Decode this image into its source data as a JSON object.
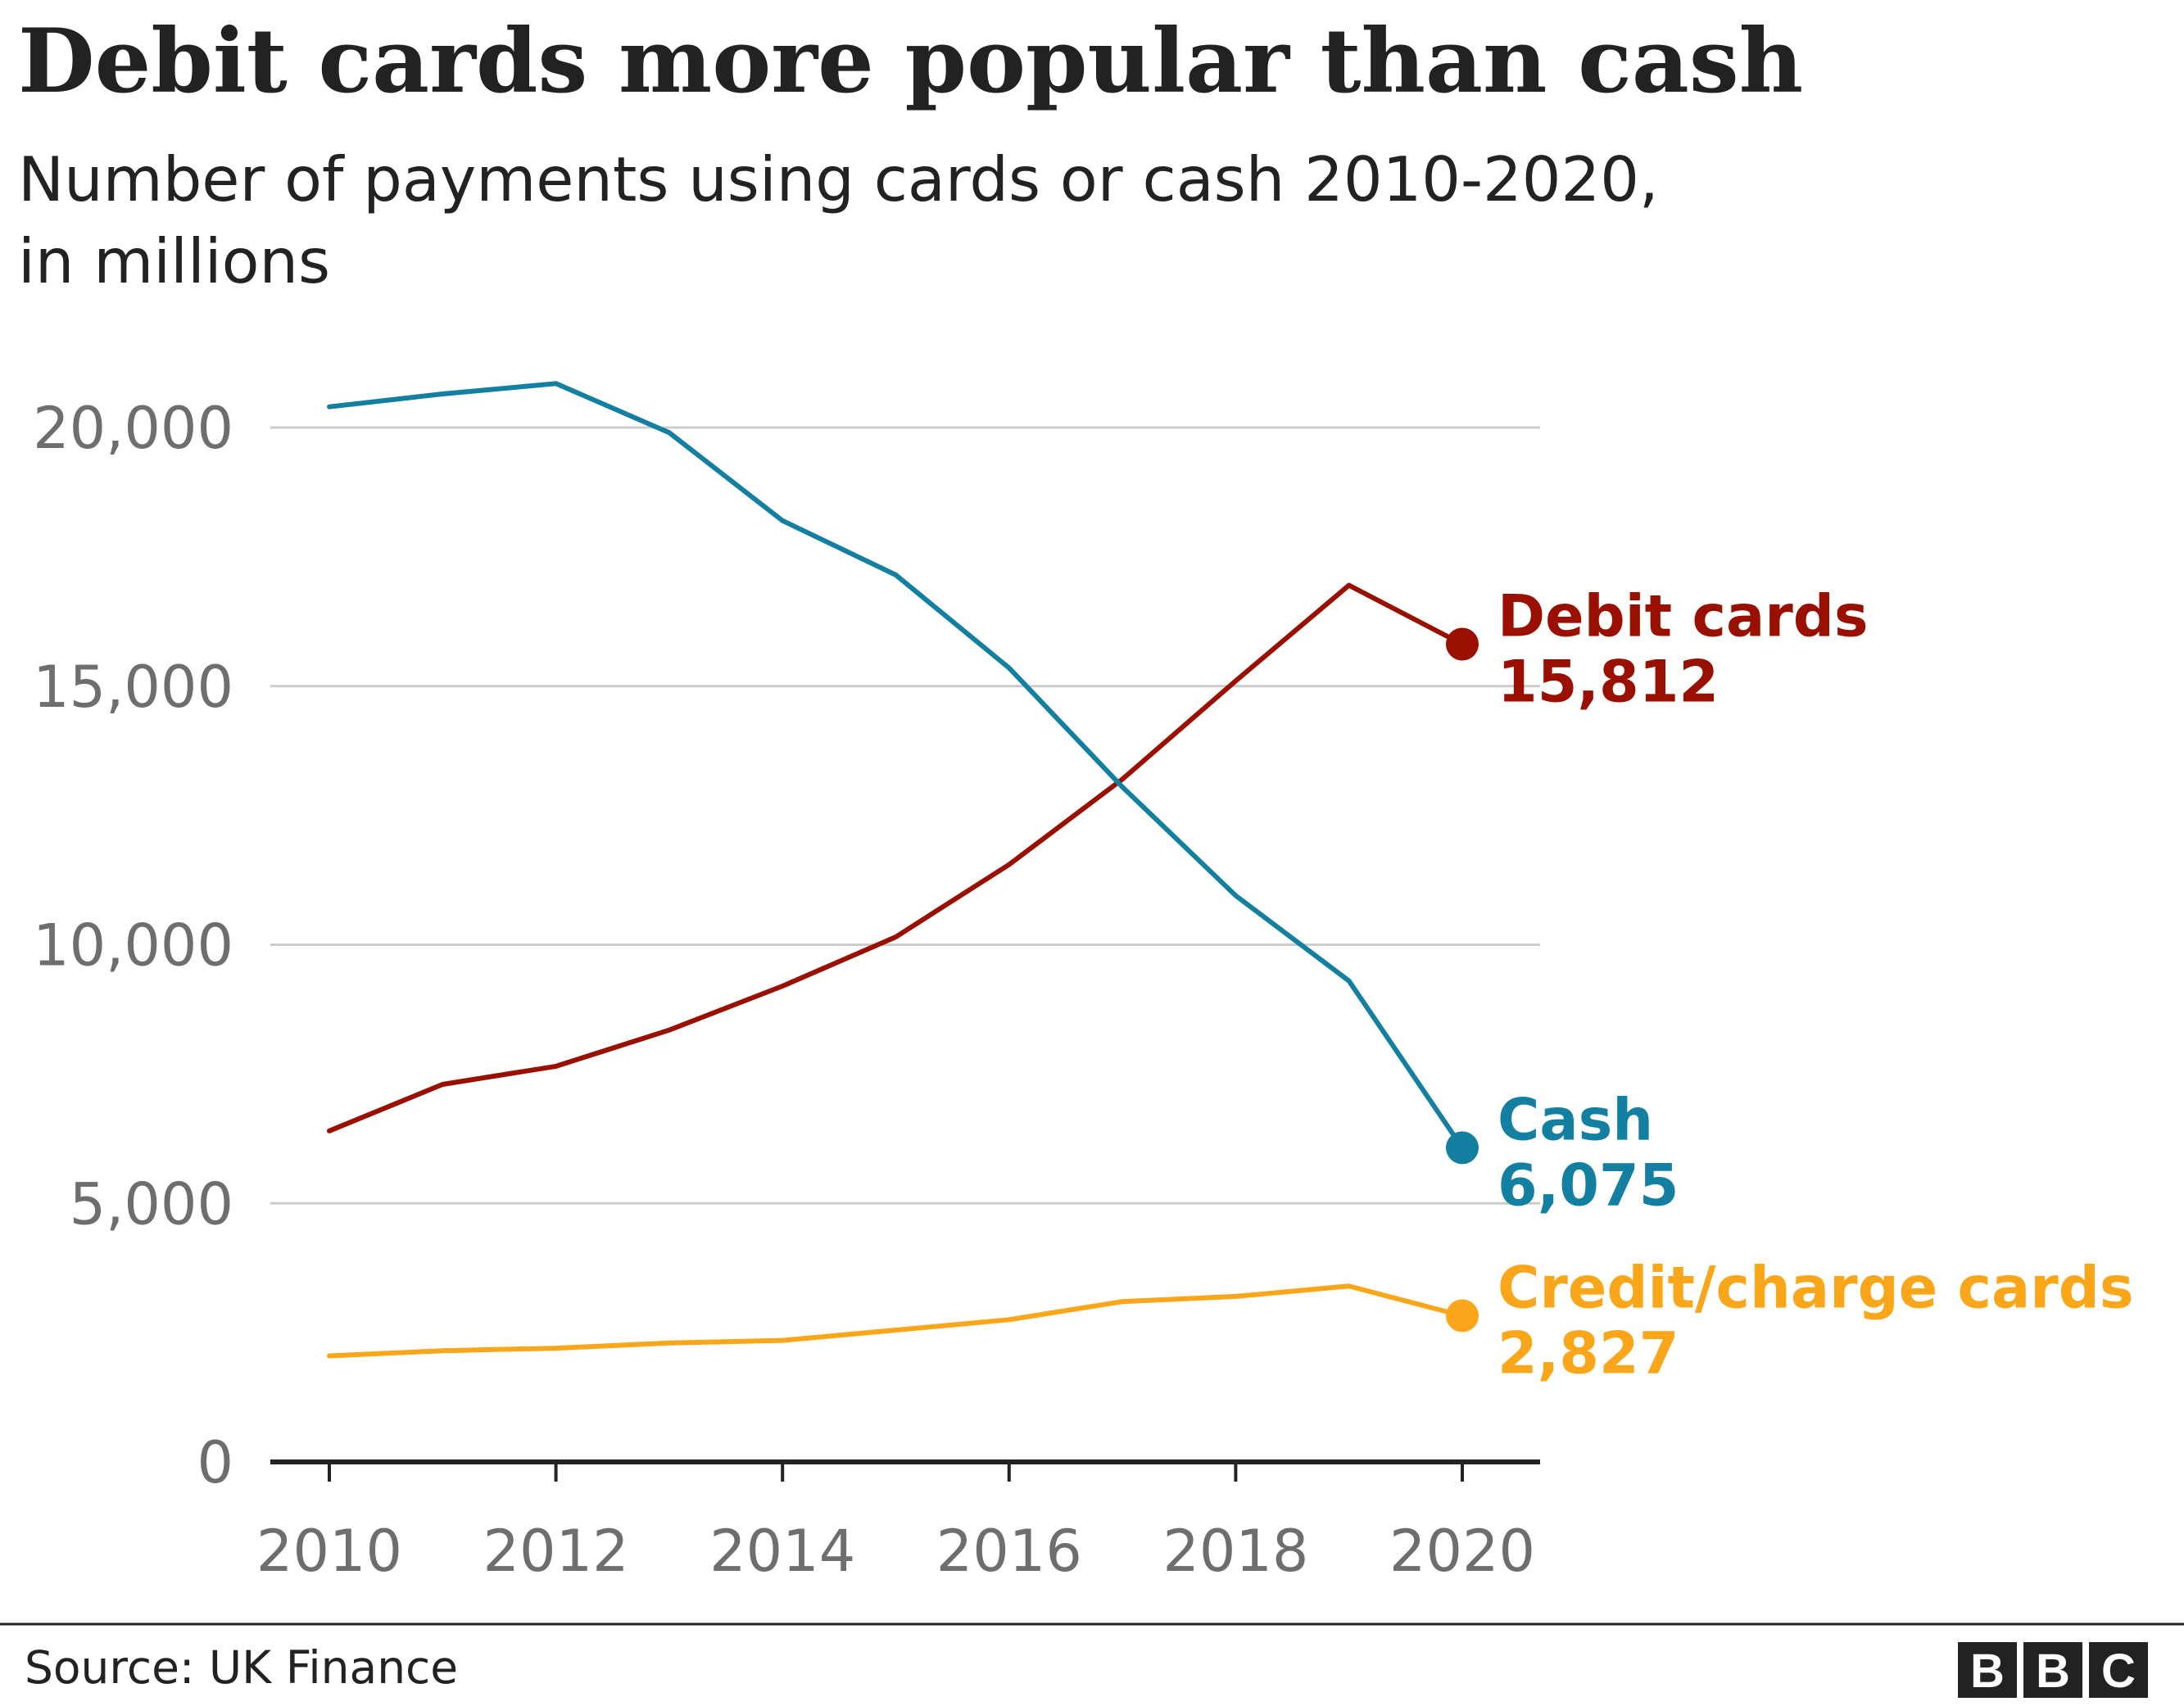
{
  "chart_data": {
    "type": "line",
    "title": "Debit cards more popular than cash",
    "subtitle": [
      "Number of payments using cards or cash 2010-2020,",
      "in millions"
    ],
    "x": [
      2010,
      2011,
      2012,
      2013,
      2014,
      2015,
      2016,
      2017,
      2018,
      2019,
      2020
    ],
    "xticks": [
      "2010",
      "2012",
      "2014",
      "2016",
      "2018",
      "2020"
    ],
    "ylim": [
      0,
      20000
    ],
    "yticks": [
      "0",
      "5,000",
      "10,000",
      "15,000",
      "20,000"
    ],
    "grid": true,
    "series": [
      {
        "name": "Debit cards",
        "color": "#990F00",
        "label_value": "15,812",
        "values": [
          6400,
          7300,
          7650,
          8350,
          9200,
          10150,
          11550,
          13200,
          15100,
          16950,
          15812
        ]
      },
      {
        "name": "Cash",
        "color": "#1380A1",
        "label_value": "6,075",
        "values": [
          20400,
          20650,
          20850,
          19900,
          18200,
          17150,
          15350,
          13050,
          10950,
          9300,
          6075
        ]
      },
      {
        "name": "Credit/charge cards",
        "color": "#FAA61A",
        "label_value": "2,827",
        "values": [
          2050,
          2150,
          2200,
          2300,
          2350,
          2550,
          2750,
          3100,
          3200,
          3400,
          2827
        ]
      }
    ]
  },
  "footer": {
    "source": "Source: UK Finance",
    "logo_letters": [
      "B",
      "B",
      "C"
    ]
  }
}
